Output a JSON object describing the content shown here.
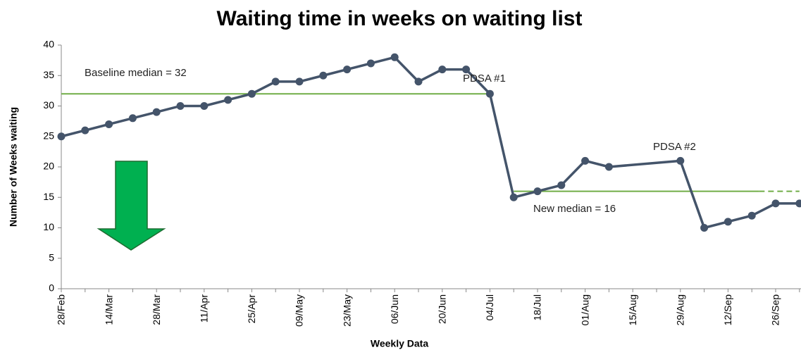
{
  "chart_data": {
    "type": "line",
    "title": "Waiting time in weeks on waiting list",
    "y_label": "Number of Weeks waiting",
    "x_label": "Weekly Data",
    "categories": [
      "28/Feb",
      null,
      "14/Mar",
      null,
      "28/Mar",
      null,
      "11/Apr",
      null,
      "25/Apr",
      null,
      "09/May",
      null,
      "23/May",
      null,
      "06/Jun",
      null,
      "20/Jun",
      null,
      "04/Jul",
      null,
      "18/Jul",
      null,
      "01/Aug",
      null,
      "15/Aug",
      null,
      "29/Aug",
      null,
      "12/Sep",
      null,
      "26/Sep",
      null
    ],
    "series": [
      {
        "color": "#44546a",
        "values": [
          25,
          26,
          27,
          28,
          29,
          30,
          30,
          31,
          32,
          34,
          34,
          35,
          36,
          37,
          38,
          34,
          36,
          36,
          32,
          15,
          16,
          17,
          21,
          20,
          null,
          null,
          21,
          10,
          11,
          12,
          14,
          14
        ]
      }
    ],
    "span_gaps": true,
    "ylim": [
      0,
      40
    ],
    "yticks": [
      0,
      5,
      10,
      15,
      20,
      25,
      30,
      35,
      40
    ],
    "grid": false,
    "reference_lines": [
      {
        "value": 32,
        "label": "Baseline median = 32",
        "color": "#70ad47"
      },
      {
        "value": 16,
        "label": "New median = 16",
        "color": "#70ad47"
      }
    ],
    "annotations": [
      "PDSA #1",
      "PDSA #2"
    ]
  }
}
